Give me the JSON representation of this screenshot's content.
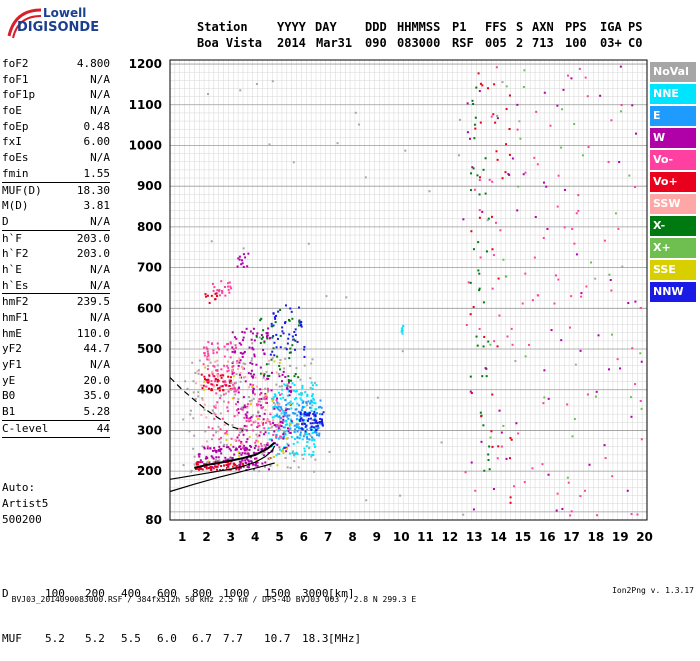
{
  "logo": {
    "line1": "Lowell",
    "line2": "DIGISONDE"
  },
  "header": {
    "labels": [
      "Station",
      "YYYY",
      "DAY",
      "DDD",
      "HHMMSS",
      "P1",
      "FFS",
      "S",
      "AXN",
      "PPS",
      "IGA",
      "PS"
    ],
    "values": [
      "Boa Vista",
      "2014",
      "Mar31",
      "090",
      "083000",
      "RSF",
      "005",
      "2",
      "713",
      "100",
      "03+",
      "C0"
    ]
  },
  "params_groups": [
    [
      {
        "key": "foF2",
        "value": "4.800"
      },
      {
        "key": "foF1",
        "value": "N/A"
      },
      {
        "key": "foF1p",
        "value": "N/A"
      },
      {
        "key": "foE",
        "value": "N/A"
      },
      {
        "key": "foEp",
        "value": "0.48"
      },
      {
        "key": "fxI",
        "value": "6.00"
      },
      {
        "key": "foEs",
        "value": "N/A"
      },
      {
        "key": "fmin",
        "value": "1.55"
      }
    ],
    [
      {
        "key": "MUF(D)",
        "value": "18.30"
      },
      {
        "key": "M(D)",
        "value": "3.81"
      },
      {
        "key": "D",
        "value": "N/A"
      }
    ],
    [
      {
        "key": "h`F",
        "value": "203.0"
      },
      {
        "key": "h`F2",
        "value": "203.0"
      },
      {
        "key": "h`E",
        "value": "N/A"
      },
      {
        "key": "h`Es",
        "value": "N/A"
      }
    ],
    [
      {
        "key": "hmF2",
        "value": "239.5"
      },
      {
        "key": "hmF1",
        "value": "N/A"
      },
      {
        "key": "hmE",
        "value": "110.0"
      },
      {
        "key": "yF2",
        "value": "44.7"
      },
      {
        "key": "yF1",
        "value": "N/A"
      },
      {
        "key": "yE",
        "value": "20.0"
      },
      {
        "key": "B0",
        "value": "35.0"
      },
      {
        "key": "B1",
        "value": "5.28"
      }
    ],
    [
      {
        "key": "C-level",
        "value": "44"
      }
    ]
  ],
  "autoscaling": {
    "line1": "Auto:",
    "line2": "Artist5",
    "line3": "500200"
  },
  "legend": [
    {
      "label": "NoVal",
      "color": "#a6a6a6"
    },
    {
      "label": "NNE",
      "color": "#00e5ff"
    },
    {
      "label": "E",
      "color": "#1e9bff"
    },
    {
      "label": "W",
      "color": "#b000a8"
    },
    {
      "label": "Vo-",
      "color": "#ff40a0"
    },
    {
      "label": "Vo+",
      "color": "#e8001c"
    },
    {
      "label": "SSW",
      "color": "#ffa7a7"
    },
    {
      "label": "X-",
      "color": "#007a10"
    },
    {
      "label": "X+",
      "color": "#6fbf50"
    },
    {
      "label": "SSE",
      "color": "#d8cf00"
    },
    {
      "label": "NNW",
      "color": "#1a1ae6"
    }
  ],
  "muf_table": {
    "d_label": "D",
    "d_values": [
      "100",
      "200",
      "400",
      "600",
      "800",
      "1000",
      "1500",
      "3000"
    ],
    "d_unit": "[km]",
    "muf_label": "MUF",
    "muf_values": [
      "5.2",
      "5.2",
      "5.5",
      "6.0",
      "6.7",
      "7.7",
      "10.7",
      "18.3"
    ],
    "muf_unit": "[MHz]"
  },
  "footer": {
    "info": "BVJ03_2014090083000.RSF / 384fx512h 50 kHz 2.5 km / DPS-4D BVJ03 003 / 2.8 N 299.3 E",
    "version": "Ion2Png v. 1.3.17"
  },
  "chart_data": {
    "type": "scatter",
    "x_ticks": [
      1,
      2,
      3,
      4,
      5,
      6,
      7,
      8,
      9,
      10,
      11,
      12,
      13,
      14,
      15,
      16,
      17,
      18,
      19,
      20
    ],
    "y_ticks": [
      80,
      200,
      300,
      400,
      500,
      600,
      700,
      800,
      900,
      1000,
      1100,
      1200
    ],
    "xlim": [
      0.5,
      20.1
    ],
    "ylim_km": [
      80,
      1210
    ],
    "grid": true,
    "traces": [
      {
        "name": "F2 O-trace",
        "x": [
          1.5,
          2.0,
          2.5,
          3.0,
          3.5,
          4.0,
          4.5,
          4.8
        ],
        "y": [
          208,
          215,
          220,
          226,
          232,
          240,
          255,
          270
        ]
      },
      {
        "name": "model-profile-solid",
        "x": [
          0.5,
          1.0,
          2.0,
          3.0,
          3.5,
          4.0,
          4.4,
          4.7,
          4.8
        ],
        "y": [
          180,
          185,
          195,
          205,
          212,
          222,
          235,
          250,
          262
        ]
      },
      {
        "name": "model-profile-solid-2",
        "x": [
          0.5,
          1.5,
          2.5,
          3.5,
          4.3,
          4.8
        ],
        "y": [
          150,
          168,
          185,
          200,
          212,
          220
        ]
      },
      {
        "name": "model-profile-dashed",
        "x": [
          0.5,
          1.0,
          1.5,
          2.0,
          2.5,
          3.0,
          3.5
        ],
        "y": [
          430,
          400,
          375,
          350,
          330,
          310,
          300
        ]
      }
    ],
    "clusters": [
      {
        "color": "#b000a8",
        "x": [
          1.6,
          4.6
        ],
        "y": [
          205,
          265
        ],
        "n": 140
      },
      {
        "color": "#e8001c",
        "x": [
          1.5,
          3.5
        ],
        "y": [
          205,
          225
        ],
        "n": 60
      },
      {
        "color": "#00e5ff",
        "x": [
          4.5,
          6.5
        ],
        "y": [
          240,
          420
        ],
        "n": 160
      },
      {
        "color": "#1e9bff",
        "x": [
          4.8,
          6.7
        ],
        "y": [
          280,
          380
        ],
        "n": 120
      },
      {
        "color": "#1a1ae6",
        "x": [
          5.8,
          6.8
        ],
        "y": [
          300,
          350
        ],
        "n": 60
      },
      {
        "color": "#b000a8",
        "x": [
          3.2,
          5.5
        ],
        "y": [
          250,
          450
        ],
        "n": 120
      },
      {
        "color": "#ff40a0",
        "x": [
          2.0,
          5.0
        ],
        "y": [
          260,
          420
        ],
        "n": 100
      },
      {
        "color": "#ff40a0",
        "x": [
          1.8,
          3.2
        ],
        "y": [
          410,
          520
        ],
        "n": 80
      },
      {
        "color": "#e8001c",
        "x": [
          1.7,
          3.0
        ],
        "y": [
          400,
          440
        ],
        "n": 40
      },
      {
        "color": "#b000a8",
        "x": [
          3.0,
          4.6
        ],
        "y": [
          430,
          560
        ],
        "n": 60
      },
      {
        "color": "#1a1ae6",
        "x": [
          4.6,
          6.0
        ],
        "y": [
          470,
          610
        ],
        "n": 50
      },
      {
        "color": "#007a10",
        "x": [
          4.0,
          5.8
        ],
        "y": [
          420,
          600
        ],
        "n": 40
      },
      {
        "color": "#a6a6a6",
        "x": [
          1.0,
          6.5
        ],
        "y": [
          200,
          480
        ],
        "n": 140
      },
      {
        "color": "#ffa7a7",
        "x": [
          1.5,
          5.0
        ],
        "y": [
          250,
          480
        ],
        "n": 60
      },
      {
        "color": "#d8cf00",
        "x": [
          1.5,
          5.5
        ],
        "y": [
          200,
          500
        ],
        "n": 30
      },
      {
        "color": "#ff40a0",
        "x": [
          2.2,
          3.0
        ],
        "y": [
          630,
          670
        ],
        "n": 20
      },
      {
        "color": "#e8001c",
        "x": [
          1.9,
          2.4
        ],
        "y": [
          610,
          640
        ],
        "n": 10
      },
      {
        "color": "#b000a8",
        "x": [
          3.2,
          3.7
        ],
        "y": [
          700,
          740
        ],
        "n": 12
      },
      {
        "color": "#00e5ff",
        "x": [
          9.95,
          10.05
        ],
        "y": [
          540,
          560
        ],
        "n": 8
      },
      {
        "color": "#007a10",
        "x": [
          12.8,
          13.6
        ],
        "y": [
          150,
          1190
        ],
        "n": 40
      },
      {
        "color": "#e8001c",
        "x": [
          12.8,
          14.5
        ],
        "y": [
          120,
          1190
        ],
        "n": 40
      },
      {
        "color": "#ff40a0",
        "x": [
          12.5,
          20.0
        ],
        "y": [
          90,
          1200
        ],
        "n": 90
      },
      {
        "color": "#b000a8",
        "x": [
          12.5,
          20.0
        ],
        "y": [
          90,
          1200
        ],
        "n": 60
      },
      {
        "color": "#6fbf50",
        "x": [
          13.0,
          20.0
        ],
        "y": [
          150,
          1200
        ],
        "n": 30
      },
      {
        "color": "#a6a6a6",
        "x": [
          1.0,
          20.0
        ],
        "y": [
          90,
          1200
        ],
        "n": 40
      }
    ]
  }
}
